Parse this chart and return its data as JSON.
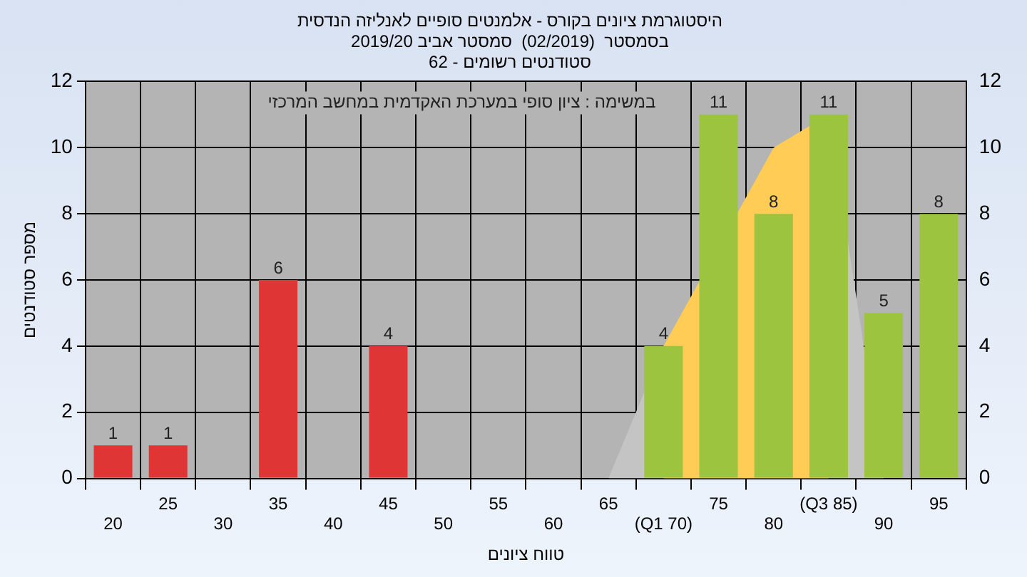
{
  "chart_data": {
    "type": "bar",
    "title": "היסטוגרמת ציונים בקורס - אלמנטים סופיים לאנליזה הנדסית",
    "subtitle": "בסמסטר  (02/2019)  סמסטר אביב 2019/20\nסטודנטים רשומים - 62",
    "xlabel": "טווח ציונים",
    "ylabel": "מספר סטודנטים",
    "annotations": [
      "במשימה : ציון סופי במערכת האקדמית במחשב המרכזי"
    ],
    "categories": [
      "20",
      "25",
      "30",
      "35",
      "40",
      "45",
      "50",
      "55",
      "60",
      "65",
      "(Q1 70)",
      "75",
      "80",
      "(Q3 85)",
      "90",
      "95"
    ],
    "series": [
      {
        "type": "area",
        "color": "#c4c4c4",
        "values": [
          null,
          null,
          null,
          null,
          null,
          null,
          null,
          null,
          null,
          0,
          4,
          null,
          null,
          11,
          0,
          null
        ]
      },
      {
        "type": "area",
        "color": "#ffcc55",
        "values": [
          null,
          null,
          null,
          null,
          null,
          null,
          null,
          null,
          null,
          null,
          4,
          null,
          10,
          11,
          null,
          null
        ]
      },
      {
        "colors": [
          "#e03535",
          "#e03535",
          null,
          "#e03535",
          null,
          "#e03535",
          null,
          null,
          null,
          null,
          "#9cc43e",
          "#9cc43e",
          "#9cc43e",
          "#9cc43e",
          "#9cc43e",
          "#9cc43e"
        ],
        "values": [
          1,
          1,
          null,
          6,
          null,
          4,
          null,
          null,
          null,
          null,
          4,
          11,
          8,
          11,
          5,
          8
        ],
        "data_labels": true
      }
    ],
    "ylim": [
      0,
      12
    ],
    "yticks": [
      0,
      2,
      4,
      6,
      8,
      10,
      12
    ],
    "y2lim": [
      0,
      12
    ],
    "y2ticks": [
      0,
      2,
      4,
      6,
      8,
      10,
      12
    ],
    "grid": true,
    "legend": false
  }
}
